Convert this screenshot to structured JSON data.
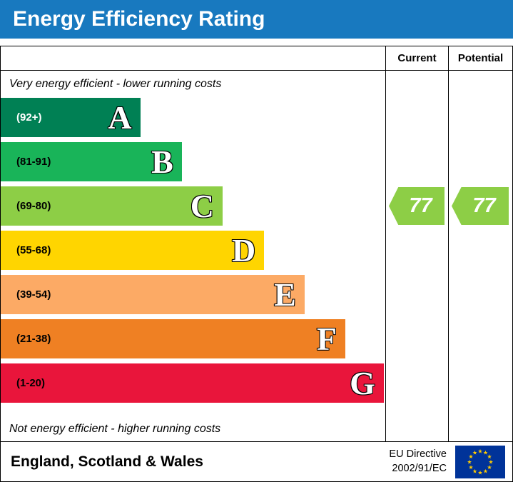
{
  "header": {
    "title": "Energy Efficiency Rating",
    "bg_color": "#1879bf",
    "text_color": "#ffffff"
  },
  "columns": {
    "current": "Current",
    "potential": "Potential"
  },
  "notes": {
    "top": "Very energy efficient - lower running costs",
    "bottom": "Not energy efficient - higher running costs"
  },
  "chart_data": {
    "type": "bar",
    "title": "Energy Efficiency Rating",
    "scale": {
      "min": 1,
      "max": 100
    },
    "bands": [
      {
        "letter": "A",
        "range": "(92+)",
        "min": 92,
        "max": 100,
        "color": "#008054",
        "range_color": "#ffffff",
        "width_pct": 36.3
      },
      {
        "letter": "B",
        "range": "(81-91)",
        "min": 81,
        "max": 91,
        "color": "#19b459",
        "range_color": "#000000",
        "width_pct": 47.1
      },
      {
        "letter": "C",
        "range": "(69-80)",
        "min": 69,
        "max": 80,
        "color": "#8dce46",
        "range_color": "#000000",
        "width_pct": 57.7
      },
      {
        "letter": "D",
        "range": "(55-68)",
        "min": 55,
        "max": 68,
        "color": "#ffd500",
        "range_color": "#000000",
        "width_pct": 68.5
      },
      {
        "letter": "E",
        "range": "(39-54)",
        "min": 39,
        "max": 54,
        "color": "#fcaa65",
        "range_color": "#000000",
        "width_pct": 79.0
      },
      {
        "letter": "F",
        "range": "(21-38)",
        "min": 21,
        "max": 38,
        "color": "#ef8023",
        "range_color": "#000000",
        "width_pct": 89.6
      },
      {
        "letter": "G",
        "range": "(1-20)",
        "min": 1,
        "max": 20,
        "color": "#e9153b",
        "range_color": "#000000",
        "width_pct": 99.6
      }
    ],
    "current": {
      "label": "77",
      "value": 77,
      "band": "C",
      "color": "#8dce46"
    },
    "potential": {
      "label": "77",
      "value": 77,
      "band": "C",
      "color": "#8dce46"
    }
  },
  "footer": {
    "region": "England, Scotland & Wales",
    "directive": [
      "EU Directive",
      "2002/91/EC"
    ],
    "eu_flag": {
      "bg": "#003399",
      "stars": "#ffcc00"
    }
  }
}
